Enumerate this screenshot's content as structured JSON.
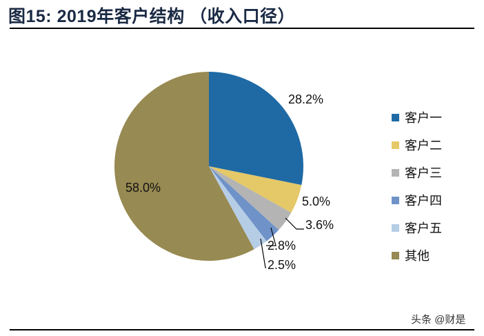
{
  "title": "图15:  2019年客户结构 （收入口径）",
  "watermark": "头条 @财是",
  "chart_data": {
    "type": "pie",
    "title": "图15:  2019年客户结构 （收入口径）",
    "start_angle": "12 o'clock, clockwise",
    "categories": [
      "客户一",
      "客户二",
      "客户三",
      "客户四",
      "客户五",
      "其他"
    ],
    "values": [
      28.2,
      5.0,
      3.6,
      2.8,
      2.5,
      58.0
    ],
    "labels": [
      "28.2%",
      "5.0%",
      "3.6%",
      "2.8%",
      "2.5%",
      "58.0%"
    ],
    "colors": [
      "#1f6aa5",
      "#e5c867",
      "#b4b4b4",
      "#6f93c8",
      "#b6cde6",
      "#978a52"
    ],
    "legend_position": "right"
  }
}
